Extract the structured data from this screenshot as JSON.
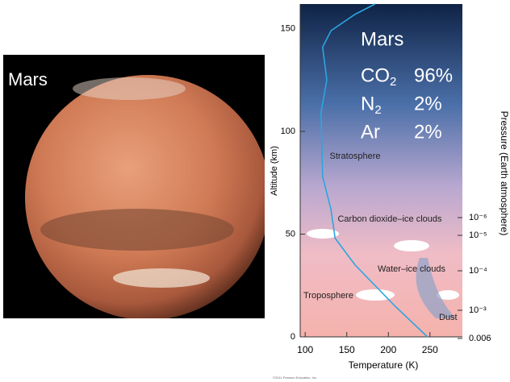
{
  "photo_label": "Mars",
  "composition": {
    "title": "Mars",
    "rows": [
      {
        "gas": "CO",
        "subscript": "2",
        "amount": "96%"
      },
      {
        "gas": "N",
        "subscript": "2",
        "amount": "2%"
      },
      {
        "gas": "Ar",
        "subscript": "",
        "amount": "2%"
      }
    ]
  },
  "credit": "©2011 Pearson Education, Inc.",
  "chart_data": {
    "type": "line",
    "x_label": "Temperature (K)",
    "y_label": "Altitude (km)",
    "y2_label": "Pressure (Earth atmosphere)",
    "series": [
      {
        "color": "#2aa6e0",
        "x": [
          247,
          208,
          160,
          136,
          131,
          121,
          119,
          126,
          121,
          131,
          160,
          184
        ],
        "values": [
          0,
          15,
          35,
          48,
          62,
          78,
          109,
          125,
          141,
          149,
          157,
          162
        ]
      }
    ],
    "xlim": [
      94,
      289
    ],
    "ylim": [
      0,
      162
    ],
    "xticks": [
      100,
      150,
      200,
      250
    ],
    "yticks": [
      0,
      50,
      100,
      150
    ],
    "y2ticks": [
      {
        "value": 1e-06,
        "label": "10⁻⁶"
      },
      {
        "value": 1e-05,
        "label": "10⁻⁵"
      },
      {
        "value": 0.0001,
        "label": "10⁻⁴"
      },
      {
        "value": 0.001,
        "label": "10⁻³"
      },
      0.006
    ],
    "annotations": [
      "Stratosphere",
      "Carbon dioxide–ice clouds",
      "Water–ice clouds",
      "Troposphere",
      "Dust"
    ]
  }
}
